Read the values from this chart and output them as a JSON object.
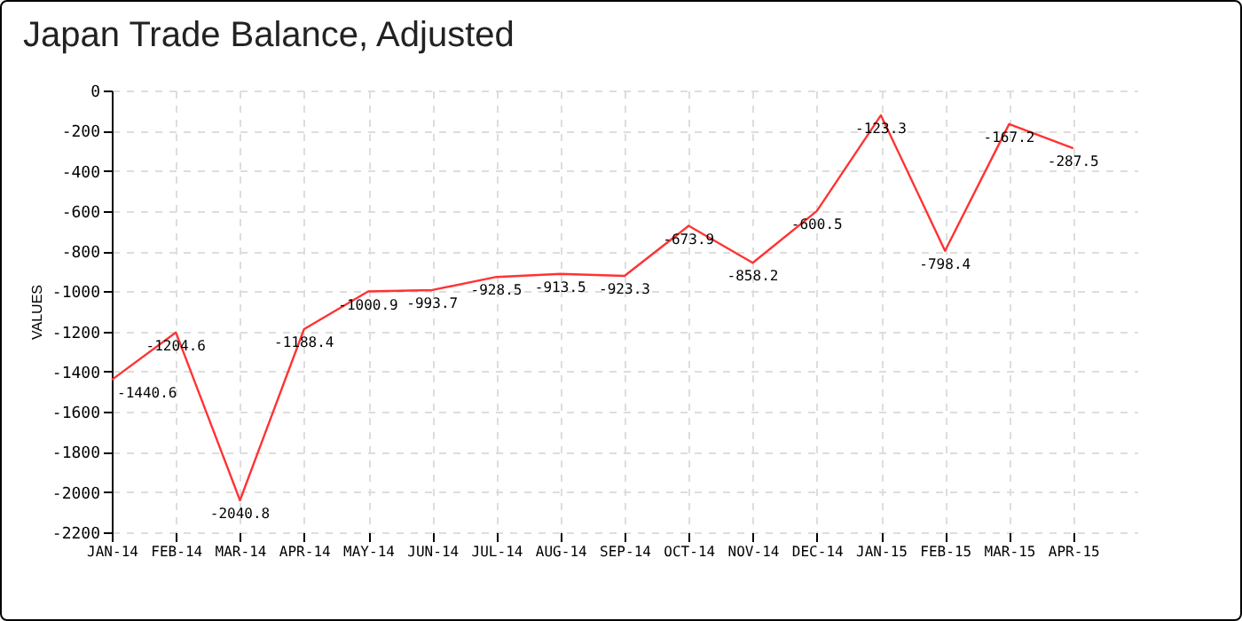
{
  "chart_data": {
    "type": "line",
    "title": "Japan Trade Balance, Adjusted",
    "ylabel": "VALUES",
    "categories": [
      "JAN-14",
      "FEB-14",
      "MAR-14",
      "APR-14",
      "MAY-14",
      "JUN-14",
      "JUL-14",
      "AUG-14",
      "SEP-14",
      "OCT-14",
      "NOV-14",
      "DEC-14",
      "JAN-15",
      "FEB-15",
      "MAR-15",
      "APR-15"
    ],
    "series": [
      {
        "color": "#ff3333",
        "values": [
          -1440.6,
          -1204.6,
          -2040.8,
          -1188.4,
          -1000.9,
          -993.7,
          -928.5,
          -913.5,
          -923.3,
          -673.9,
          -858.2,
          -600.5,
          -123.3,
          -798.4,
          -167.2,
          -287.5
        ]
      }
    ],
    "ylim": [
      -2200,
      0
    ],
    "yticks": [
      -2200,
      -2000,
      -1800,
      -1600,
      -1400,
      -1200,
      -1000,
      -800,
      -600,
      -400,
      -200,
      0
    ],
    "grid": true,
    "data_labels": true,
    "marker": "none"
  }
}
